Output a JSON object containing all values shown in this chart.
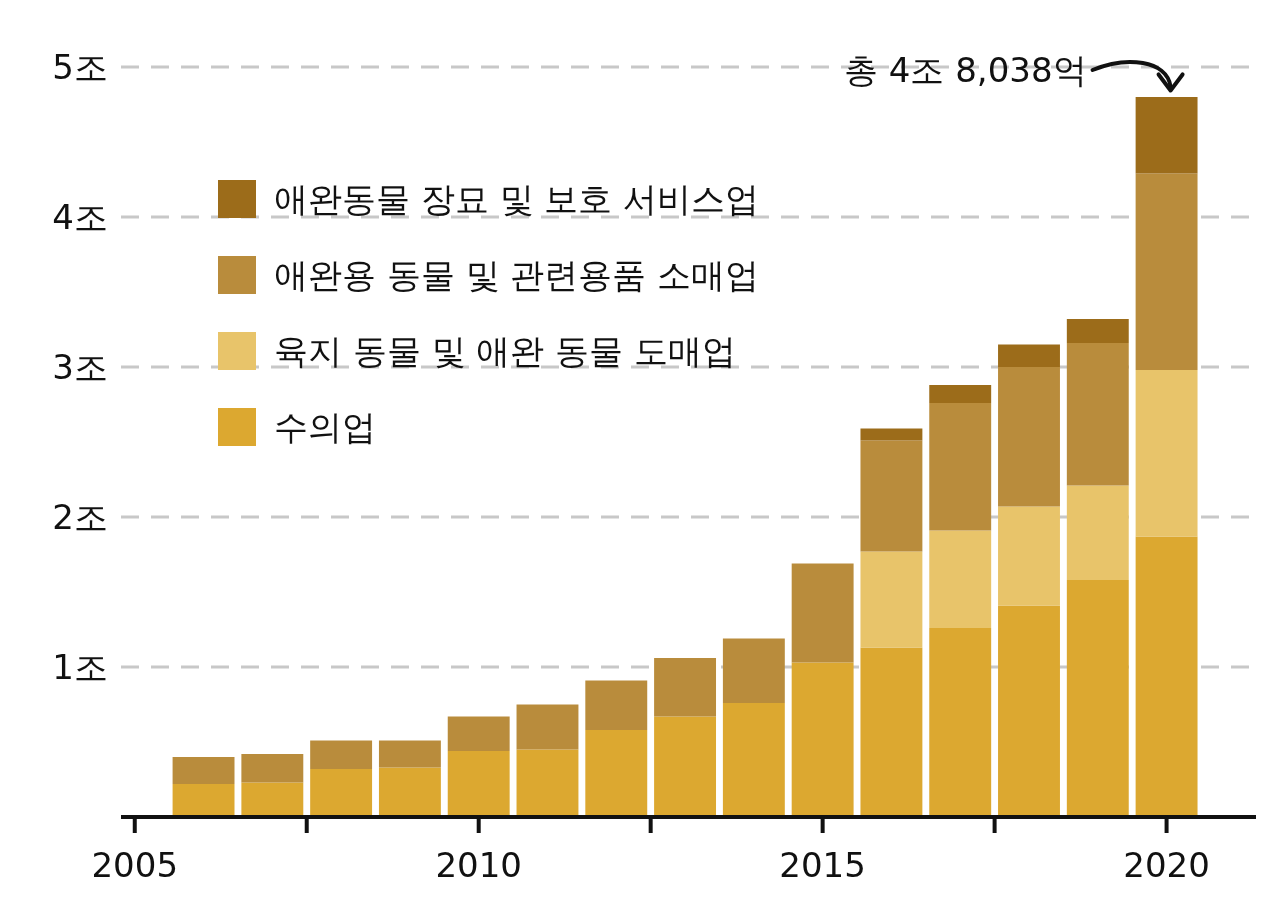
{
  "chart_data": {
    "type": "bar",
    "stacked": true,
    "x": [
      2006,
      2007,
      2008,
      2009,
      2010,
      2011,
      2012,
      2013,
      2014,
      2015,
      2016,
      2017,
      2018,
      2019,
      2020
    ],
    "series": [
      {
        "name": "수의업",
        "color": "#dca830",
        "values": [
          0.22,
          0.23,
          0.32,
          0.33,
          0.44,
          0.45,
          0.58,
          0.67,
          0.76,
          1.03,
          1.13,
          1.26,
          1.41,
          1.58,
          1.87
        ]
      },
      {
        "name": "육지 동물 및 애완 동물 도매업",
        "color": "#e8c46a",
        "values": [
          null,
          null,
          null,
          null,
          null,
          null,
          null,
          null,
          null,
          null,
          0.64,
          0.65,
          0.66,
          0.63,
          1.11
        ]
      },
      {
        "name": "애완용 동물 및 관련용품 소매업",
        "color": "#b98c3c",
        "values": [
          0.18,
          0.19,
          0.19,
          0.18,
          0.23,
          0.3,
          0.33,
          0.39,
          0.43,
          0.66,
          0.74,
          0.85,
          0.93,
          0.95,
          1.31
        ]
      },
      {
        "name": "애완동물 장묘 및 보호 서비스업",
        "color": "#9c6c1a",
        "values": [
          null,
          null,
          null,
          null,
          null,
          null,
          null,
          null,
          null,
          null,
          0.08,
          0.12,
          0.15,
          0.16,
          0.51
        ]
      }
    ],
    "xlim": [
      2004.8,
      2021.3
    ],
    "xticks": [
      2005,
      {
        "value": 2007.5,
        "label": null
      },
      2010,
      {
        "value": 2012.5,
        "label": null
      },
      2015,
      {
        "value": 2017.5,
        "label": null
      },
      2020
    ],
    "ylim": [
      0,
      5
    ],
    "yticks": [
      {
        "value": 1,
        "label": "1조"
      },
      {
        "value": 2,
        "label": "2조"
      },
      {
        "value": 3,
        "label": "3조"
      },
      {
        "value": 4,
        "label": "4조"
      },
      {
        "value": 5,
        "label": "5조"
      }
    ],
    "grid": "y",
    "legend": "top left",
    "annotations": [
      {
        "text": "총 4조 8,038억",
        "x": 2020,
        "y": 4.8038
      }
    ]
  }
}
